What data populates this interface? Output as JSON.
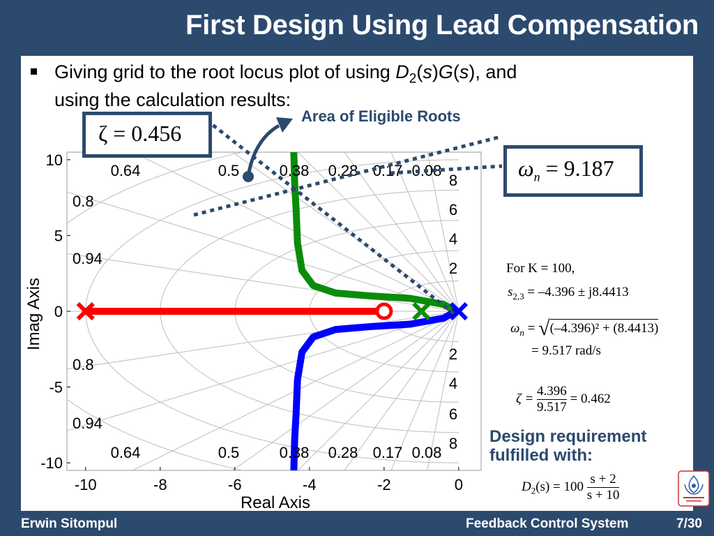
{
  "slide": {
    "title": "First Design Using Lead Compensation",
    "bullet_text_part1": "Giving grid to the root locus plot of  using ",
    "bullet_D": "D",
    "bullet_D_sub": "2",
    "bullet_paren1": "(",
    "bullet_s1": "s",
    "bullet_paren2": ")",
    "bullet_G": "G",
    "bullet_paren3": "(",
    "bullet_s2": "s",
    "bullet_text_part2": "), and",
    "bullet_line2": "using the calculation results:"
  },
  "annotations": {
    "zeta_box": "ζ = 0.456",
    "wn_box_symbol": "ω",
    "wn_box_sub": "n",
    "wn_box_value": " = 9.187",
    "area_label": "Area of Eligible Roots",
    "requirement": [
      "Design requirement",
      "fulfilled with:"
    ]
  },
  "calculations": {
    "line1": "For K = 100,",
    "line2": "s",
    "line2_sub": "2,3",
    "line2_rest": " = –4.396 ± j8.4413",
    "line3_sym": "ω",
    "line3_sub": "n",
    "line3_rest": " = ",
    "line3_rad": "(–4.396)² + (8.4413)",
    "line4": "= 9.517 rad/s",
    "line5_sym": "ζ = ",
    "line5_num": "4.396",
    "line5_den": "9.517",
    "line5_res": " = 0.462",
    "d2_lhs": "D",
    "d2_sub": "2",
    "d2_mid": "(s) = 100",
    "d2_num": "s + 2",
    "d2_den": "s + 10"
  },
  "footer": {
    "author": "Erwin Sitompul",
    "course": "Feedback Control System",
    "page": "7/30"
  },
  "colors": {
    "frame": "#2c4a6e",
    "red_branch": "#ff0000",
    "green_branch": "#0a8c0a",
    "blue_branch": "#0000ff",
    "pole_marker": "#ff0000",
    "zero_marker": "#ff0000"
  },
  "plot": {
    "xlabel": "Real Axis",
    "ylabel": "Imag Axis",
    "x_ticks": [
      "-10",
      "-8",
      "-6",
      "-4",
      "-2",
      "0"
    ],
    "y_ticks": [
      "10",
      "5",
      "0",
      "-5",
      "-10"
    ],
    "damping_labels": [
      "0.64",
      "0.5",
      "0.38",
      "0.28",
      "0.17",
      "0.08"
    ],
    "damping_labels_left": [
      "0.8",
      "0.94"
    ],
    "freq_labels": [
      "8",
      "6",
      "4",
      "2"
    ]
  },
  "chart_data": {
    "type": "line",
    "xlim": [
      -10.5,
      0.6
    ],
    "ylim": [
      -10.5,
      10.5
    ],
    "xlabel": "Real Axis",
    "ylabel": "Imag Axis",
    "grid": true,
    "series": [
      {
        "color": "#ff0000",
        "x": [
          -10,
          -1.9
        ],
        "y": [
          0,
          0
        ]
      },
      {
        "color": "#0a8c0a",
        "x": [
          -0.08,
          -0.4,
          -1.3,
          -2.3,
          -3.3,
          -3.9,
          -4.2,
          -4.32,
          -4.36,
          -4.396,
          -4.42
        ],
        "y": [
          0,
          0.45,
          0.85,
          1.0,
          1.2,
          1.7,
          2.7,
          4.5,
          6.8,
          8.4413,
          10.5
        ]
      },
      {
        "color": "#0000ff",
        "x": [
          -0.08,
          -0.4,
          -1.3,
          -2.3,
          -3.3,
          -3.9,
          -4.2,
          -4.32,
          -4.36,
          -4.396,
          -4.42
        ],
        "y": [
          0,
          -0.45,
          -0.85,
          -1.0,
          -1.2,
          -1.7,
          -2.7,
          -4.5,
          -6.8,
          -8.4413,
          -10.5
        ]
      }
    ],
    "poles": [
      {
        "x": -10,
        "y": 0
      },
      {
        "x": -1.0,
        "y": 0
      },
      {
        "x": 0,
        "y": 0
      }
    ],
    "zeros": [
      {
        "x": -2,
        "y": 0
      }
    ]
  }
}
